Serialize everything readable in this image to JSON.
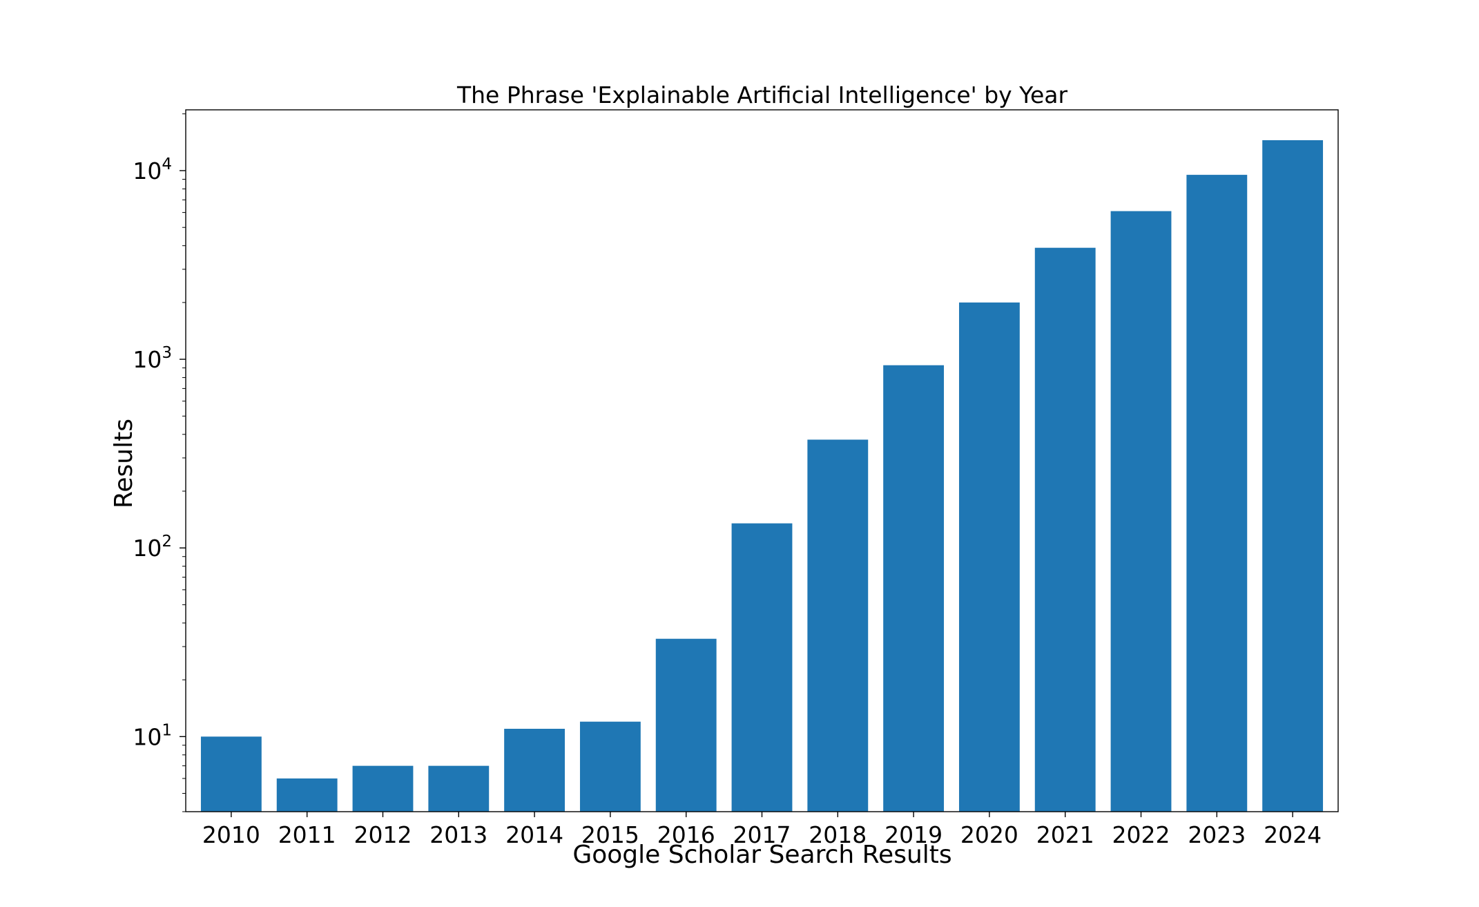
{
  "chart_data": {
    "type": "bar",
    "title": "The Phrase 'Explainable Artificial Intelligence' by Year",
    "xlabel": "Google Scholar Search Results",
    "ylabel": "Results",
    "yscale": "log",
    "ylim": [
      4,
      21000
    ],
    "grid": false,
    "color": "#1f77b4",
    "categories": [
      "2010",
      "2011",
      "2012",
      "2013",
      "2014",
      "2015",
      "2016",
      "2017",
      "2018",
      "2019",
      "2020",
      "2021",
      "2022",
      "2023",
      "2024"
    ],
    "values": [
      10,
      6,
      7,
      7,
      11,
      12,
      33,
      135,
      375,
      930,
      2000,
      3900,
      6100,
      9500,
      14500
    ],
    "yticks": [
      {
        "value": 10,
        "base": "10",
        "exp": "1"
      },
      {
        "value": 100,
        "base": "10",
        "exp": "2"
      },
      {
        "value": 1000,
        "base": "10",
        "exp": "3"
      },
      {
        "value": 10000,
        "base": "10",
        "exp": "4"
      }
    ]
  }
}
